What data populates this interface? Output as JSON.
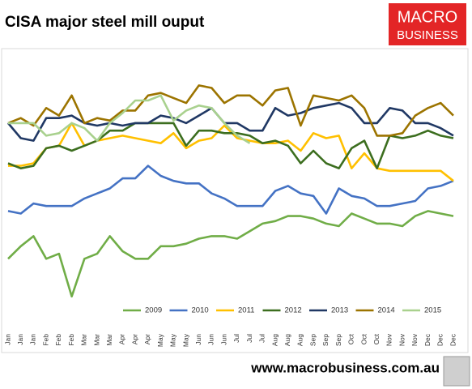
{
  "header": {
    "title": "CISA major steel mill ouput",
    "logo": [
      "MACRO",
      "BUSINESS"
    ],
    "url": "www.macrobusiness.com.au"
  },
  "chart_data": {
    "type": "line",
    "categories": [
      "Jan",
      "Jan",
      "Jan",
      "Feb",
      "Feb",
      "Feb",
      "Mar",
      "Mar",
      "Mar",
      "Apr",
      "Apr",
      "Apr",
      "May",
      "May",
      "May",
      "Jun",
      "Jun",
      "Jun",
      "Jul",
      "Jul",
      "Jul",
      "Aug",
      "Aug",
      "Aug",
      "Sep",
      "Sep",
      "Sep",
      "Oct",
      "Oct",
      "Oct",
      "Nov",
      "Nov",
      "Nov",
      "Dec",
      "Dec",
      "Dec"
    ],
    "ylim": [
      0,
      100
    ],
    "series": [
      {
        "name": "2009",
        "color": "#70ad47",
        "values": [
          17,
          22,
          26,
          17,
          19,
          2,
          17,
          19,
          26,
          20,
          17,
          17,
          22,
          22,
          23,
          25,
          26,
          26,
          25,
          28,
          31,
          32,
          34,
          34,
          33,
          31,
          30,
          35,
          33,
          31,
          31,
          30,
          34,
          36,
          35,
          34
        ]
      },
      {
        "name": "2010",
        "color": "#4472c4",
        "values": [
          36,
          35,
          39,
          38,
          38,
          38,
          41,
          43,
          45,
          49,
          49,
          54,
          50,
          48,
          47,
          47,
          43,
          41,
          38,
          38,
          38,
          44,
          46,
          43,
          42,
          35,
          45,
          42,
          41,
          38,
          38,
          39,
          40,
          45,
          46,
          48
        ]
      },
      {
        "name": "2011",
        "color": "#ffc000",
        "values": [
          54,
          54,
          55,
          61,
          62,
          71,
          62,
          64,
          65,
          66,
          65,
          64,
          63,
          67,
          61,
          64,
          65,
          70,
          65,
          64,
          63,
          63,
          64,
          60,
          67,
          65,
          66,
          53,
          59,
          53,
          52,
          52,
          52,
          52,
          52,
          48
        ]
      },
      {
        "name": "2012",
        "color": "#3c6e1f",
        "values": [
          55,
          53,
          54,
          61,
          62,
          60,
          62,
          64,
          68,
          68,
          71,
          71,
          71,
          71,
          62,
          68,
          68,
          67,
          67,
          66,
          63,
          64,
          62,
          55,
          60,
          55,
          53,
          61,
          64,
          53,
          66,
          65,
          66,
          68,
          66,
          65
        ]
      },
      {
        "name": "2013",
        "color": "#203864",
        "values": [
          71,
          65,
          64,
          73,
          73,
          74,
          71,
          70,
          71,
          70,
          71,
          71,
          74,
          73,
          71,
          74,
          77,
          71,
          71,
          68,
          68,
          77,
          74,
          75,
          77,
          78,
          79,
          77,
          71,
          71,
          77,
          76,
          71,
          71,
          69,
          66
        ]
      },
      {
        "name": "2014",
        "color": "#9c7400",
        "values": [
          71,
          73,
          70,
          77,
          74,
          82,
          71,
          73,
          72,
          76,
          76,
          82,
          83,
          81,
          79,
          86,
          85,
          79,
          82,
          82,
          78,
          84,
          85,
          70,
          82,
          81,
          80,
          82,
          77,
          66,
          66,
          67,
          74,
          77,
          79,
          74
        ]
      },
      {
        "name": "2015",
        "color": "#a9d18e",
        "values": [
          71,
          71,
          71,
          66,
          67,
          71,
          69,
          64,
          71,
          75,
          80,
          80,
          82,
          72,
          76,
          78,
          77,
          71,
          66,
          63,
          null,
          null,
          null,
          null,
          null,
          null,
          null,
          null,
          null,
          null,
          null,
          null,
          null,
          null,
          null,
          null
        ]
      }
    ]
  }
}
